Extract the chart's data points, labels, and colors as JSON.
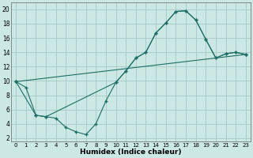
{
  "xlabel": "Humidex (Indice chaleur)",
  "bg_color": "#cce8e4",
  "grid_color": "#aaccca",
  "line_color": "#1a6e64",
  "xlim": [
    -0.5,
    23.5
  ],
  "ylim": [
    1.5,
    21
  ],
  "xticks": [
    0,
    1,
    2,
    3,
    4,
    5,
    6,
    7,
    8,
    9,
    10,
    11,
    12,
    13,
    14,
    15,
    16,
    17,
    18,
    19,
    20,
    21,
    22,
    23
  ],
  "yticks": [
    2,
    4,
    6,
    8,
    10,
    12,
    14,
    16,
    18,
    20
  ],
  "line1_x": [
    0,
    1,
    2,
    3,
    4,
    5,
    6,
    7,
    8,
    9,
    10,
    11,
    12,
    13,
    14,
    15,
    16,
    17,
    18,
    19,
    20,
    21,
    22,
    23
  ],
  "line1_y": [
    9.9,
    9.1,
    5.2,
    5.0,
    4.8,
    3.5,
    2.9,
    2.5,
    4.0,
    7.2,
    9.8,
    11.4,
    13.2,
    14.0,
    16.7,
    18.1,
    19.7,
    19.8,
    18.5,
    15.8,
    13.2,
    13.8,
    14.0,
    13.7
  ],
  "line2_x": [
    0,
    2,
    3,
    10,
    11,
    12,
    13,
    14,
    15,
    16,
    17,
    18,
    19,
    20,
    21,
    22,
    23
  ],
  "line2_y": [
    9.9,
    5.2,
    5.0,
    9.8,
    11.4,
    13.2,
    14.0,
    16.7,
    18.1,
    19.7,
    19.8,
    18.5,
    15.8,
    13.2,
    13.8,
    14.0,
    13.7
  ],
  "line3_x": [
    0,
    23
  ],
  "line3_y": [
    9.9,
    13.7
  ]
}
